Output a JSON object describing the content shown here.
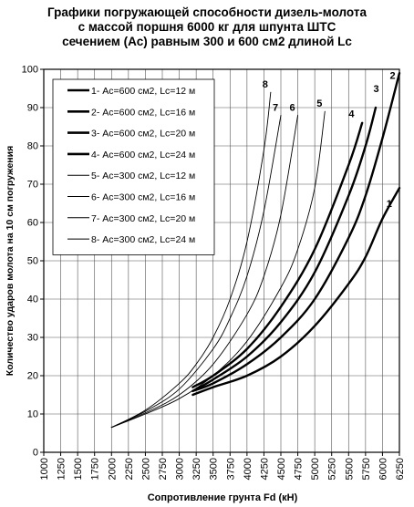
{
  "chart_data": {
    "type": "line",
    "title_lines": [
      "Графики погружающей способности дизель-молота",
      "с массой поршня 6000 кг для шпунта ШТС",
      "сечением (Ас) равным 300 и 600 см2 длиной Lc"
    ],
    "xlabel": "Сопротивление грунта Fd (кН)",
    "ylabel": "Количество ударов молота на 10 см погружения",
    "xlim": [
      1000,
      6250
    ],
    "ylim": [
      0,
      100
    ],
    "xticks": [
      1000,
      1250,
      1500,
      1750,
      2000,
      2250,
      2500,
      2750,
      3000,
      3250,
      3500,
      3750,
      4000,
      4250,
      4500,
      4750,
      5000,
      5250,
      5500,
      5750,
      6000,
      6250
    ],
    "yticks": [
      0,
      10,
      20,
      30,
      40,
      50,
      60,
      70,
      80,
      90,
      100
    ],
    "grid": true,
    "legend_position": "top-left",
    "series": [
      {
        "name": "1- Ас=600 см2, Lc=12 м",
        "label": "1",
        "bold": true,
        "points": [
          [
            3200,
            15
          ],
          [
            3500,
            17
          ],
          [
            4000,
            20
          ],
          [
            4500,
            25
          ],
          [
            5000,
            33
          ],
          [
            5500,
            44
          ],
          [
            5750,
            51
          ],
          [
            6000,
            61
          ],
          [
            6250,
            69
          ]
        ]
      },
      {
        "name": "2- Ас=600 см2, Lc=16 м",
        "label": "2",
        "bold": true,
        "points": [
          [
            3200,
            16
          ],
          [
            3500,
            18
          ],
          [
            4000,
            23
          ],
          [
            4500,
            30
          ],
          [
            5000,
            40
          ],
          [
            5500,
            56
          ],
          [
            5750,
            67
          ],
          [
            6000,
            82
          ],
          [
            6250,
            99
          ]
        ]
      },
      {
        "name": "3- Ас=600 см2, Lc=20 м",
        "label": "3",
        "bold": true,
        "points": [
          [
            3200,
            16
          ],
          [
            3500,
            19
          ],
          [
            4000,
            25
          ],
          [
            4500,
            34
          ],
          [
            5000,
            47
          ],
          [
            5500,
            67
          ],
          [
            5750,
            80
          ],
          [
            5900,
            90
          ]
        ]
      },
      {
        "name": "4- Ас=600 см2, Lc=24 м",
        "label": "4",
        "bold": true,
        "points": [
          [
            3200,
            17
          ],
          [
            3500,
            20
          ],
          [
            4000,
            27
          ],
          [
            4500,
            38
          ],
          [
            5000,
            53
          ],
          [
            5500,
            75
          ],
          [
            5700,
            86
          ]
        ]
      },
      {
        "name": "5- Ас=300 см2, Lc=12 м",
        "label": "5",
        "bold": false,
        "points": [
          [
            2000,
            6.5
          ],
          [
            2500,
            10
          ],
          [
            3000,
            14
          ],
          [
            3500,
            20
          ],
          [
            4000,
            29
          ],
          [
            4500,
            43
          ],
          [
            4750,
            53
          ],
          [
            5000,
            69
          ],
          [
            5150,
            89
          ]
        ]
      },
      {
        "name": "6- Ас=300 см2, Lc=16 м",
        "label": "6",
        "bold": false,
        "points": [
          [
            2000,
            6.5
          ],
          [
            2500,
            10.3
          ],
          [
            3000,
            15
          ],
          [
            3500,
            23
          ],
          [
            4000,
            36
          ],
          [
            4250,
            46
          ],
          [
            4500,
            62
          ],
          [
            4750,
            88
          ]
        ]
      },
      {
        "name": "7- Ас=300 см2, Lc=20 м",
        "label": "7",
        "bold": false,
        "points": [
          [
            2000,
            6.5
          ],
          [
            2500,
            10.7
          ],
          [
            3000,
            16.5
          ],
          [
            3500,
            27
          ],
          [
            3750,
            35
          ],
          [
            4000,
            46
          ],
          [
            4250,
            63
          ],
          [
            4500,
            88
          ]
        ]
      },
      {
        "name": "8- Ас=300 см2, Lc=24 м",
        "label": "8",
        "bold": false,
        "points": [
          [
            2000,
            6.5
          ],
          [
            2500,
            11
          ],
          [
            3000,
            18
          ],
          [
            3250,
            23
          ],
          [
            3500,
            30
          ],
          [
            3750,
            40
          ],
          [
            4000,
            55
          ],
          [
            4250,
            79
          ],
          [
            4350,
            94
          ]
        ]
      }
    ]
  }
}
